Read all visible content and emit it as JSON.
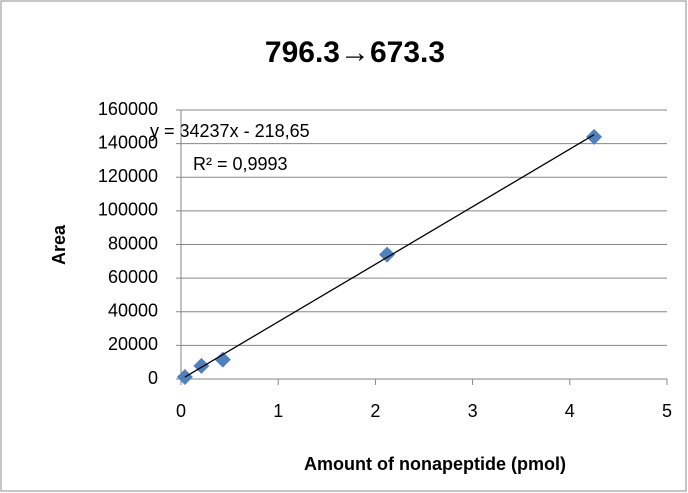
{
  "chart_data": {
    "type": "scatter",
    "title": "796.3→673.3",
    "x_label": "Amount of nonapeptide (pmol)",
    "y_label": "Area",
    "series": [
      {
        "name": "796.3→673.3",
        "color": "#4f81bd",
        "x": [
          0.04,
          0.21,
          0.43,
          2.12,
          4.25
        ],
        "values": [
          1200,
          7800,
          11500,
          74000,
          144000
        ]
      }
    ],
    "trendline": {
      "slope": 34237,
      "intercept": -218.65,
      "color": "#000000",
      "equation_label": "y = 34237x - 218,65",
      "r2_label": "R² = 0,9993"
    },
    "xlim": [
      0,
      5
    ],
    "xticks": [
      0,
      1,
      2,
      3,
      4,
      5
    ],
    "ylim": [
      0,
      160000
    ],
    "yticks": [
      0,
      20000,
      40000,
      60000,
      80000,
      100000,
      120000,
      140000,
      160000
    ],
    "grid": true
  }
}
